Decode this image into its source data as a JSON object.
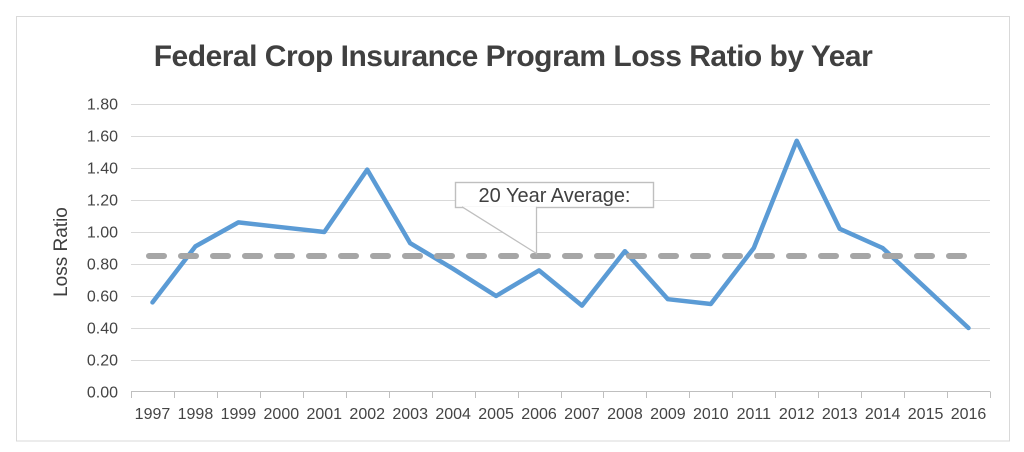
{
  "title": "Federal Crop Insurance Program Loss Ratio by Year",
  "y_axis_title": "Loss Ratio",
  "callout": {
    "label": "20 Year Average:"
  },
  "colors": {
    "line": "#5B9BD5",
    "average_line": "#A6A6A6",
    "gridline": "#D9D9D9",
    "axis": "#BFBFBF",
    "text": "#404040",
    "tick_text": "#444444",
    "callout_border": "#BFBFBF",
    "frame_border": "#D9D9D9"
  },
  "chart_data": {
    "type": "line",
    "title": "Federal Crop Insurance Program Loss Ratio by Year",
    "xlabel": "",
    "ylabel": "Loss Ratio",
    "categories": [
      "1997",
      "1998",
      "1999",
      "2000",
      "2001",
      "2002",
      "2003",
      "2004",
      "2005",
      "2006",
      "2007",
      "2008",
      "2009",
      "2010",
      "2011",
      "2012",
      "2013",
      "2014",
      "2015",
      "2016"
    ],
    "series": [
      {
        "values": [
          0.56,
          0.91,
          1.06,
          1.03,
          1.0,
          1.39,
          0.93,
          0.77,
          0.6,
          0.76,
          0.54,
          0.88,
          0.58,
          0.55,
          0.9,
          1.57,
          1.02,
          0.9,
          0.65,
          0.4
        ],
        "color": "#5B9BD5",
        "style": "solid"
      }
    ],
    "average_line": {
      "label": "20 Year Average:",
      "value": 0.85,
      "color": "#A6A6A6",
      "style": "dashed"
    },
    "ylim": [
      0,
      1.8
    ],
    "ytick_step": 0.2,
    "ytick_labels": [
      "0.00",
      "0.20",
      "0.40",
      "0.60",
      "0.80",
      "1.00",
      "1.20",
      "1.40",
      "1.60",
      "1.80"
    ],
    "grid": true,
    "legend": "none"
  }
}
